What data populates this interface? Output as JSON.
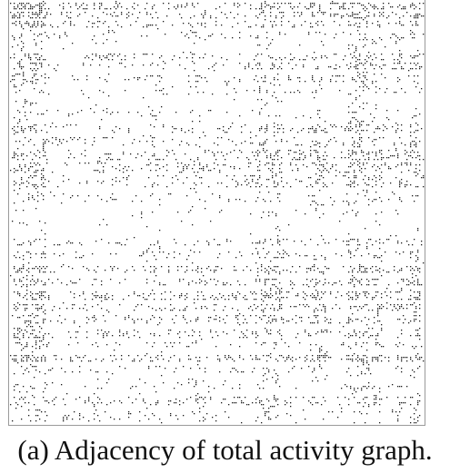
{
  "figure": {
    "caption": "(a)  Adjacency of total activity graph."
  },
  "matrix": {
    "type": "sparse adjacency matrix (spy plot)",
    "dot_color": "#1a1a1a",
    "frame_color": "#9a9a9a",
    "background": "#ffffff"
  }
}
